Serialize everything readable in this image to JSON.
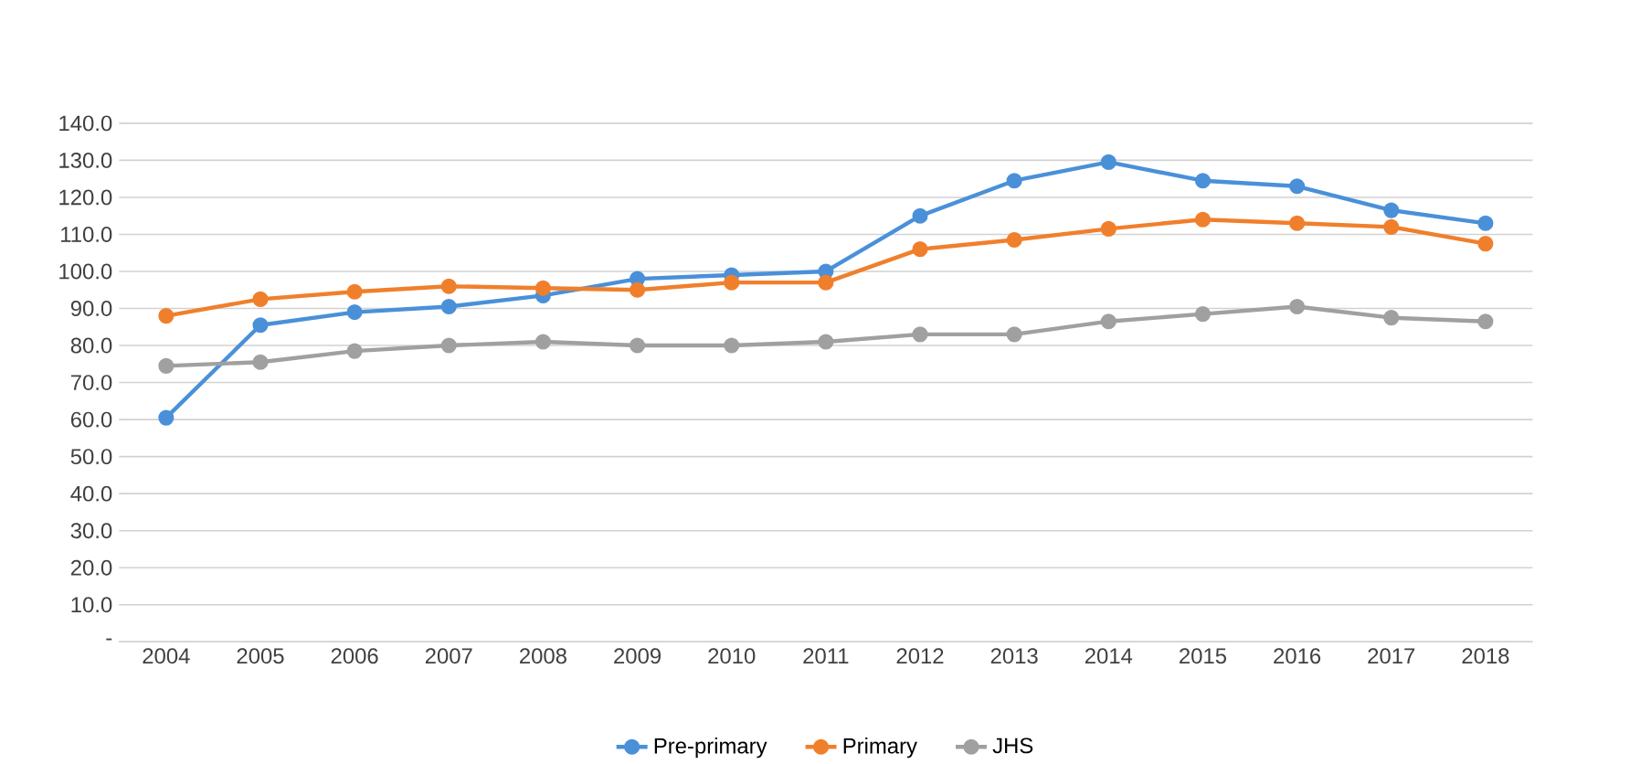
{
  "chart_data": {
    "type": "line",
    "categories": [
      "2004",
      "2005",
      "2006",
      "2007",
      "2008",
      "2009",
      "2010",
      "2011",
      "2012",
      "2013",
      "2014",
      "2015",
      "2016",
      "2017",
      "2018"
    ],
    "series": [
      {
        "name": "Pre-primary",
        "color": "#4a90d9",
        "values": [
          60.5,
          85.5,
          89,
          90.5,
          93.5,
          98,
          99,
          100,
          115,
          124.5,
          129.5,
          124.5,
          123,
          116.5,
          113
        ]
      },
      {
        "name": "Primary",
        "color": "#f07f2c",
        "values": [
          88,
          92.5,
          94.5,
          96,
          95.5,
          95,
          97,
          97,
          106,
          108.5,
          111.5,
          114,
          113,
          112,
          107.5
        ]
      },
      {
        "name": "JHS",
        "color": "#a0a0a0",
        "values": [
          74.5,
          75.5,
          78.5,
          80,
          81,
          80,
          80,
          81,
          83,
          83,
          86.5,
          88.5,
          90.5,
          87.5,
          86.5
        ]
      }
    ],
    "ylim": [
      0,
      140
    ],
    "yticks": [
      {
        "value": 0,
        "label": "-"
      },
      {
        "value": 10,
        "label": "10.0"
      },
      {
        "value": 20,
        "label": "20.0"
      },
      {
        "value": 30,
        "label": "30.0"
      },
      {
        "value": 40,
        "label": "40.0"
      },
      {
        "value": 50,
        "label": "50.0"
      },
      {
        "value": 60,
        "label": "60.0"
      },
      {
        "value": 70,
        "label": "70.0"
      },
      {
        "value": 80,
        "label": "80.0"
      },
      {
        "value": 90,
        "label": "90.0"
      },
      {
        "value": 100,
        "label": "100.0"
      },
      {
        "value": 110,
        "label": "110.0"
      },
      {
        "value": 120,
        "label": "120.0"
      },
      {
        "value": 130,
        "label": "130.0"
      },
      {
        "value": 140,
        "label": "140.0"
      }
    ],
    "grid": "y",
    "legend": "bottom",
    "marker": "circle",
    "line_style": "solid"
  }
}
